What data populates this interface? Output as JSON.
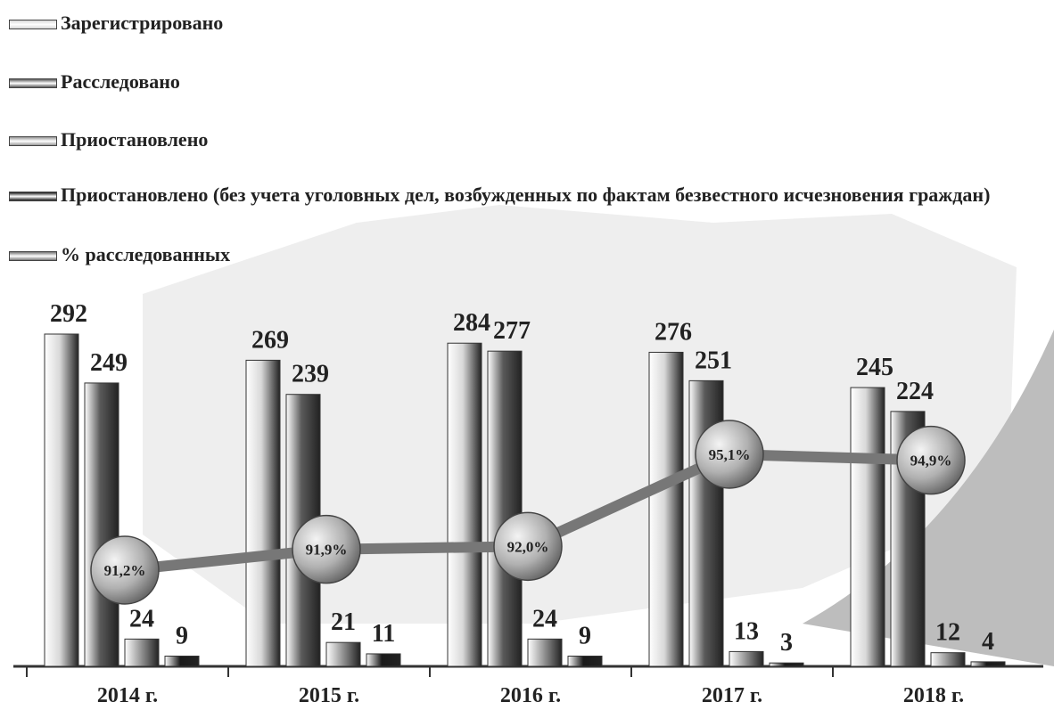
{
  "chart_data": {
    "type": "bar",
    "categories": [
      "2014 г.",
      "2015 г.",
      "2016 г.",
      "2017 г.",
      "2018 г."
    ],
    "series": [
      {
        "name": "Зарегистрировано",
        "color": "#d8d8d8",
        "values": [
          292,
          269,
          284,
          276,
          245
        ]
      },
      {
        "name": "Расследовано",
        "color": "#5a5a5a",
        "values": [
          249,
          239,
          277,
          251,
          224
        ]
      },
      {
        "name": "Приостановлено",
        "color": "#9a9a9a",
        "values": [
          24,
          21,
          24,
          13,
          12
        ]
      },
      {
        "name": "Приостановлено (без учета уголовных дел, возбужденных по фактам безвестного исчезновения граждан)",
        "color": "#1a1a1a",
        "values": [
          9,
          11,
          9,
          3,
          4
        ]
      },
      {
        "name": "% расследованных",
        "type": "line",
        "color": "#777777",
        "values": [
          91.2,
          91.9,
          92.0,
          95.1,
          94.9
        ],
        "value_labels": [
          "91,2%",
          "91,9%",
          "92,0%",
          "95,1%",
          "94,9%"
        ]
      }
    ]
  }
}
